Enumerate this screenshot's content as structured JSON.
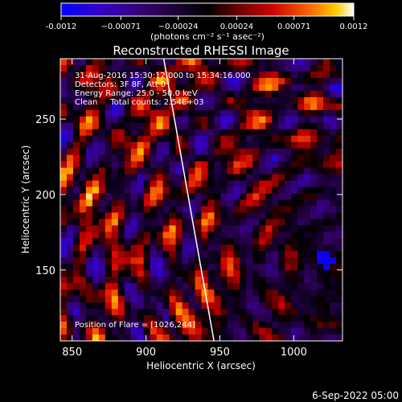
{
  "chart_data": {
    "type": "heatmap",
    "title": "Reconstructed RHESSI Image",
    "xlabel": "Heliocentric X (arcsec)",
    "ylabel": "Heliocentric Y (arcsec)",
    "xlim": [
      842,
      1033
    ],
    "ylim": [
      103,
      290
    ],
    "x_ticks": [
      "850",
      "900",
      "950",
      "1000"
    ],
    "x_tick_values": [
      850,
      900,
      950,
      1000
    ],
    "y_ticks": [
      "150",
      "200",
      "250"
    ],
    "y_tick_values": [
      150,
      200,
      250
    ],
    "colorbar": {
      "range": [
        -0.0012,
        0.0012
      ],
      "tick_labels": [
        "-0.0012",
        "−0.00071",
        "−0.00024",
        "0.00024",
        "0.00071",
        "0.0012"
      ],
      "tick_values": [
        -0.0012,
        -0.00071,
        -0.00024,
        0.00024,
        0.00071,
        0.0012
      ],
      "units_label": "(photons cm⁻² s⁻¹ asec⁻²)",
      "colormap": [
        "#0000ff",
        "#3300cc",
        "#330066",
        "#000000",
        "#660000",
        "#cc0000",
        "#ff6600",
        "#ffcc00",
        "#ffffff"
      ]
    },
    "info_lines": [
      "31-Aug-2016 15:30:12.000 to 15:34:16.000",
      "Detectors: 3F 8F, Att 0",
      "Energy Range: 25.0 - 50.0 keV",
      "Clean     Total counts: 2.54E+03"
    ],
    "flare_label": "Position of Flare = [1026,244]",
    "limb_line": [
      [
        912,
        290
      ],
      [
        946,
        103
      ]
    ],
    "grid": false
  },
  "footer": {
    "date": "6-Sep-2022 05:00"
  }
}
